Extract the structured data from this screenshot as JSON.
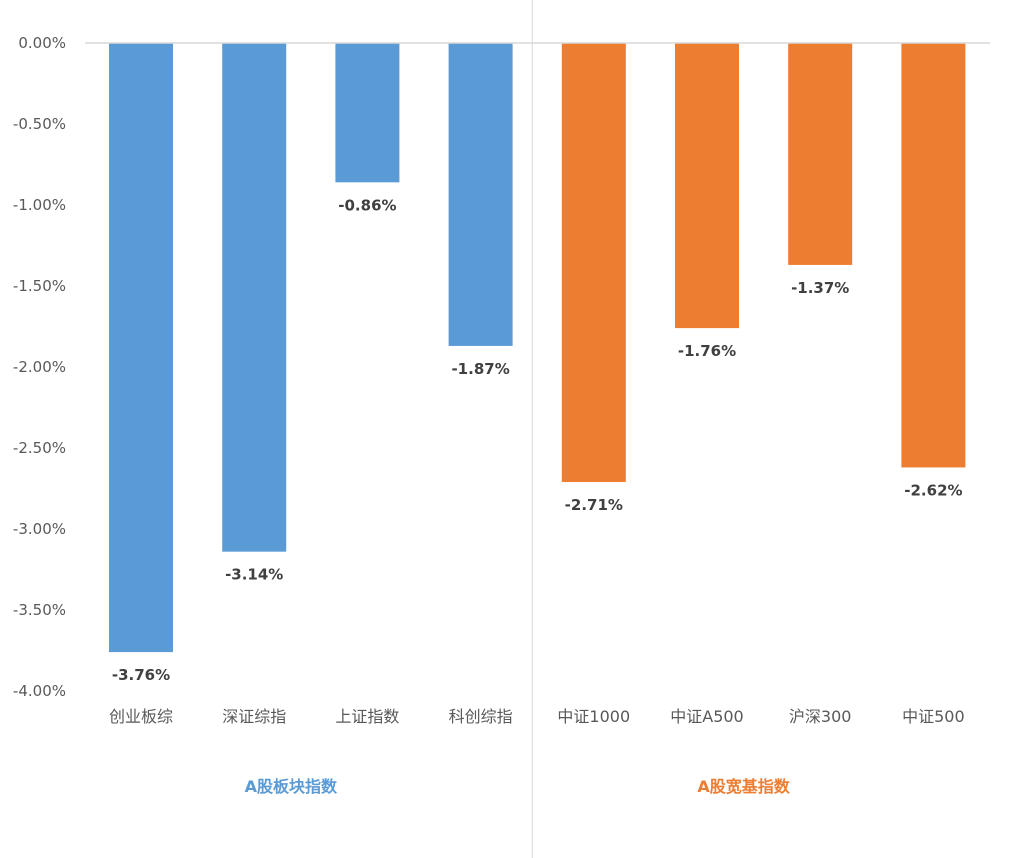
{
  "chart_data": {
    "type": "bar",
    "categories": [
      "创业板综",
      "深证综指",
      "上证指数",
      "科创综指",
      "中证1000",
      "中证A500",
      "沪深300",
      "中证500"
    ],
    "values": [
      -3.76,
      -3.14,
      -0.86,
      -1.87,
      -2.71,
      -1.76,
      -1.37,
      -2.62
    ],
    "value_labels": [
      "-3.76%",
      "-3.14%",
      "-0.86%",
      "-1.87%",
      "-2.71%",
      "-1.76%",
      "-1.37%",
      "-2.62%"
    ],
    "bar_colors": [
      "#5B9BD5",
      "#5B9BD5",
      "#5B9BD5",
      "#5B9BD5",
      "#ED7D31",
      "#ED7D31",
      "#ED7D31",
      "#ED7D31"
    ],
    "groups": [
      {
        "label": "A股板块指数",
        "color": "#5B9BD5",
        "start": 0,
        "end": 3
      },
      {
        "label": "A股宽基指数",
        "color": "#ED7D31",
        "start": 4,
        "end": 7
      }
    ],
    "ylim": [
      -4.0,
      0.0
    ],
    "yticks": [
      0.0,
      -0.5,
      -1.0,
      -1.5,
      -2.0,
      -2.5,
      -3.0,
      -3.5,
      -4.0
    ],
    "ytick_labels": [
      "0.00%",
      "-0.50%",
      "-1.00%",
      "-1.50%",
      "-2.00%",
      "-2.50%",
      "-3.00%",
      "-3.50%",
      "-4.00%"
    ],
    "title": "",
    "xlabel": "",
    "ylabel": "",
    "grid": false,
    "legend": "none"
  },
  "colors": {
    "axis": "#D9D9D9",
    "divider": "#D9D9D9"
  }
}
